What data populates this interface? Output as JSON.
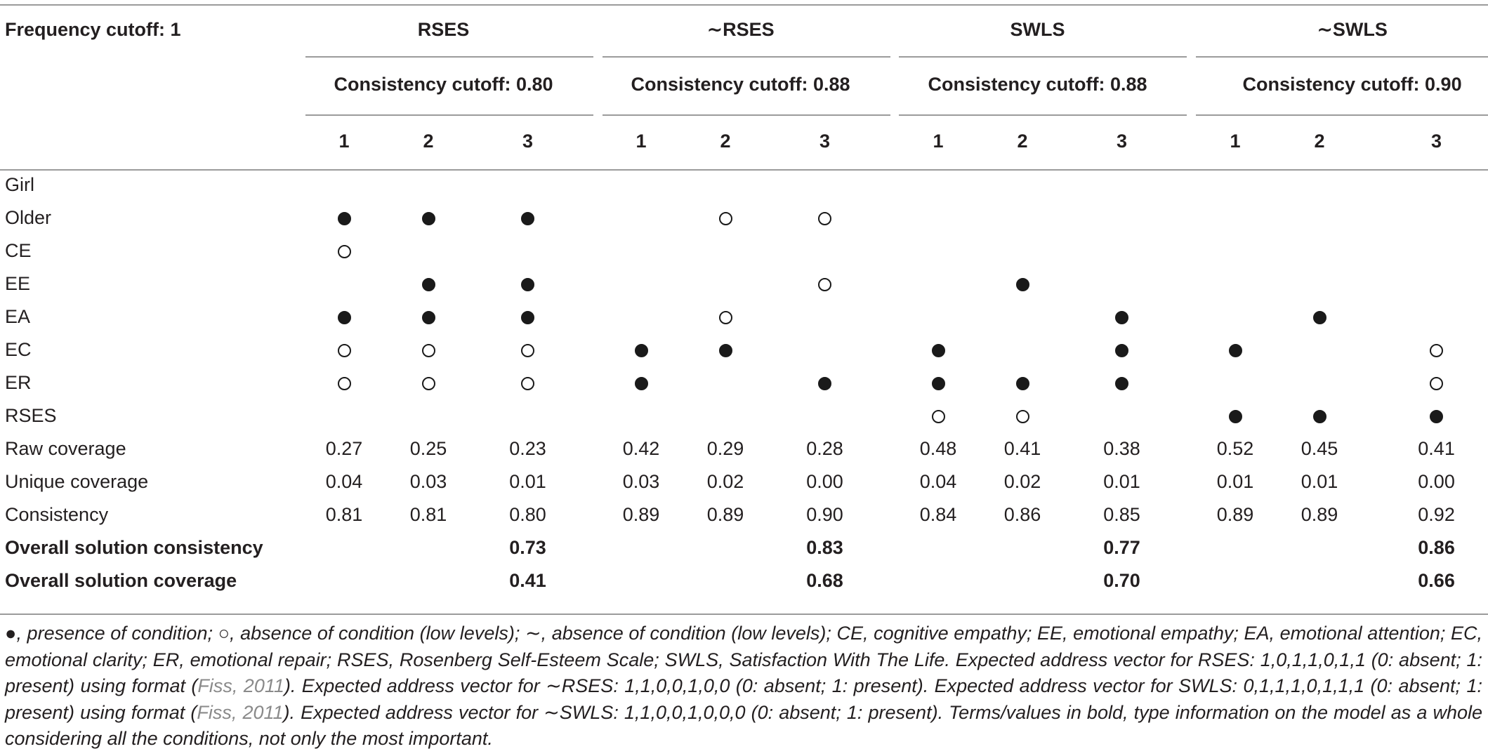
{
  "header": {
    "corner_label": "Frequency cutoff: 1",
    "outcomes": [
      "RSES",
      "∼RSES",
      "SWLS",
      "∼SWLS"
    ],
    "consistency_cutoffs": [
      "Consistency cutoff: 0.80",
      "Consistency cutoff: 0.88",
      "Consistency cutoff: 0.88",
      "Consistency cutoff: 0.90"
    ],
    "solution_numbers": [
      "1",
      "2",
      "3",
      "1",
      "2",
      "3",
      "1",
      "2",
      "3",
      "1",
      "2",
      "3"
    ]
  },
  "conditions": [
    {
      "label": "Girl",
      "marks": [
        "",
        "",
        "",
        "",
        "",
        "",
        "",
        "",
        "",
        "",
        "",
        ""
      ]
    },
    {
      "label": "Older",
      "marks": [
        "filled",
        "filled",
        "filled",
        "",
        "empty",
        "empty",
        "",
        "",
        "",
        "",
        "",
        ""
      ]
    },
    {
      "label": "CE",
      "marks": [
        "empty",
        "",
        "",
        "",
        "",
        "",
        "",
        "",
        "",
        "",
        "",
        ""
      ]
    },
    {
      "label": "EE",
      "marks": [
        "",
        "filled",
        "filled",
        "",
        "",
        "empty",
        "",
        "filled",
        "",
        "",
        "",
        ""
      ]
    },
    {
      "label": "EA",
      "marks": [
        "filled",
        "filled",
        "filled",
        "",
        "empty",
        "",
        "",
        "",
        "filled",
        "",
        "filled",
        ""
      ]
    },
    {
      "label": "EC",
      "marks": [
        "empty",
        "empty",
        "empty",
        "filled",
        "filled",
        "",
        "filled",
        "",
        "filled",
        "filled",
        "",
        "empty"
      ]
    },
    {
      "label": "ER",
      "marks": [
        "empty",
        "empty",
        "empty",
        "filled",
        "",
        "filled",
        "filled",
        "filled",
        "filled",
        "",
        "",
        "empty"
      ]
    },
    {
      "label": "RSES",
      "marks": [
        "",
        "",
        "",
        "",
        "",
        "",
        "empty",
        "empty",
        "",
        "filled",
        "filled",
        "filled"
      ]
    }
  ],
  "stats": [
    {
      "label": "Raw coverage",
      "values": [
        "0.27",
        "0.25",
        "0.23",
        "0.42",
        "0.29",
        "0.28",
        "0.48",
        "0.41",
        "0.38",
        "0.52",
        "0.45",
        "0.41"
      ]
    },
    {
      "label": "Unique coverage",
      "values": [
        "0.04",
        "0.03",
        "0.01",
        "0.03",
        "0.02",
        "0.00",
        "0.04",
        "0.02",
        "0.01",
        "0.01",
        "0.01",
        "0.00"
      ]
    },
    {
      "label": "Consistency",
      "values": [
        "0.81",
        "0.81",
        "0.80",
        "0.89",
        "0.89",
        "0.90",
        "0.84",
        "0.86",
        "0.85",
        "0.89",
        "0.89",
        "0.92"
      ]
    }
  ],
  "overall": [
    {
      "label": "Overall solution consistency",
      "values": [
        "0.73",
        "0.83",
        "0.77",
        "0.86"
      ]
    },
    {
      "label": "Overall solution coverage",
      "values": [
        "0.41",
        "0.68",
        "0.70",
        "0.66"
      ]
    }
  ],
  "footnote": {
    "filled_symbol": "●",
    "empty_symbol": "○",
    "tilde_symbol": "∼",
    "part1": ", presence of condition; ",
    "part2": ", absence of condition (low levels); ",
    "part3": ", absence of condition (low levels); CE, cognitive empathy; EE, emotional empathy; EA, emotional attention; EC, emotional clarity; ER, emotional repair; RSES, Rosenberg Self-Esteem Scale; SWLS, Satisfaction With The Life. Expected address vector for RSES: 1,0,1,1,0,1,1 (0: absent; 1: present) using format (",
    "ref1": "Fiss, 2011",
    "part4": "). Expected address vector for ∼RSES: 1,1,0,0,1,0,0 (0: absent; 1: present). Expected address vector for SWLS: 0,1,1,1,0,1,1,1 (0: absent; 1: present) using format (",
    "ref2": "Fiss, 2011",
    "part5": "). Expected address vector for ∼SWLS: 1,1,0,0,1,0,0,0 (0: absent; 1: present). Terms/values in bold, type information on the model as a whole considering all the conditions, not only the most important."
  }
}
